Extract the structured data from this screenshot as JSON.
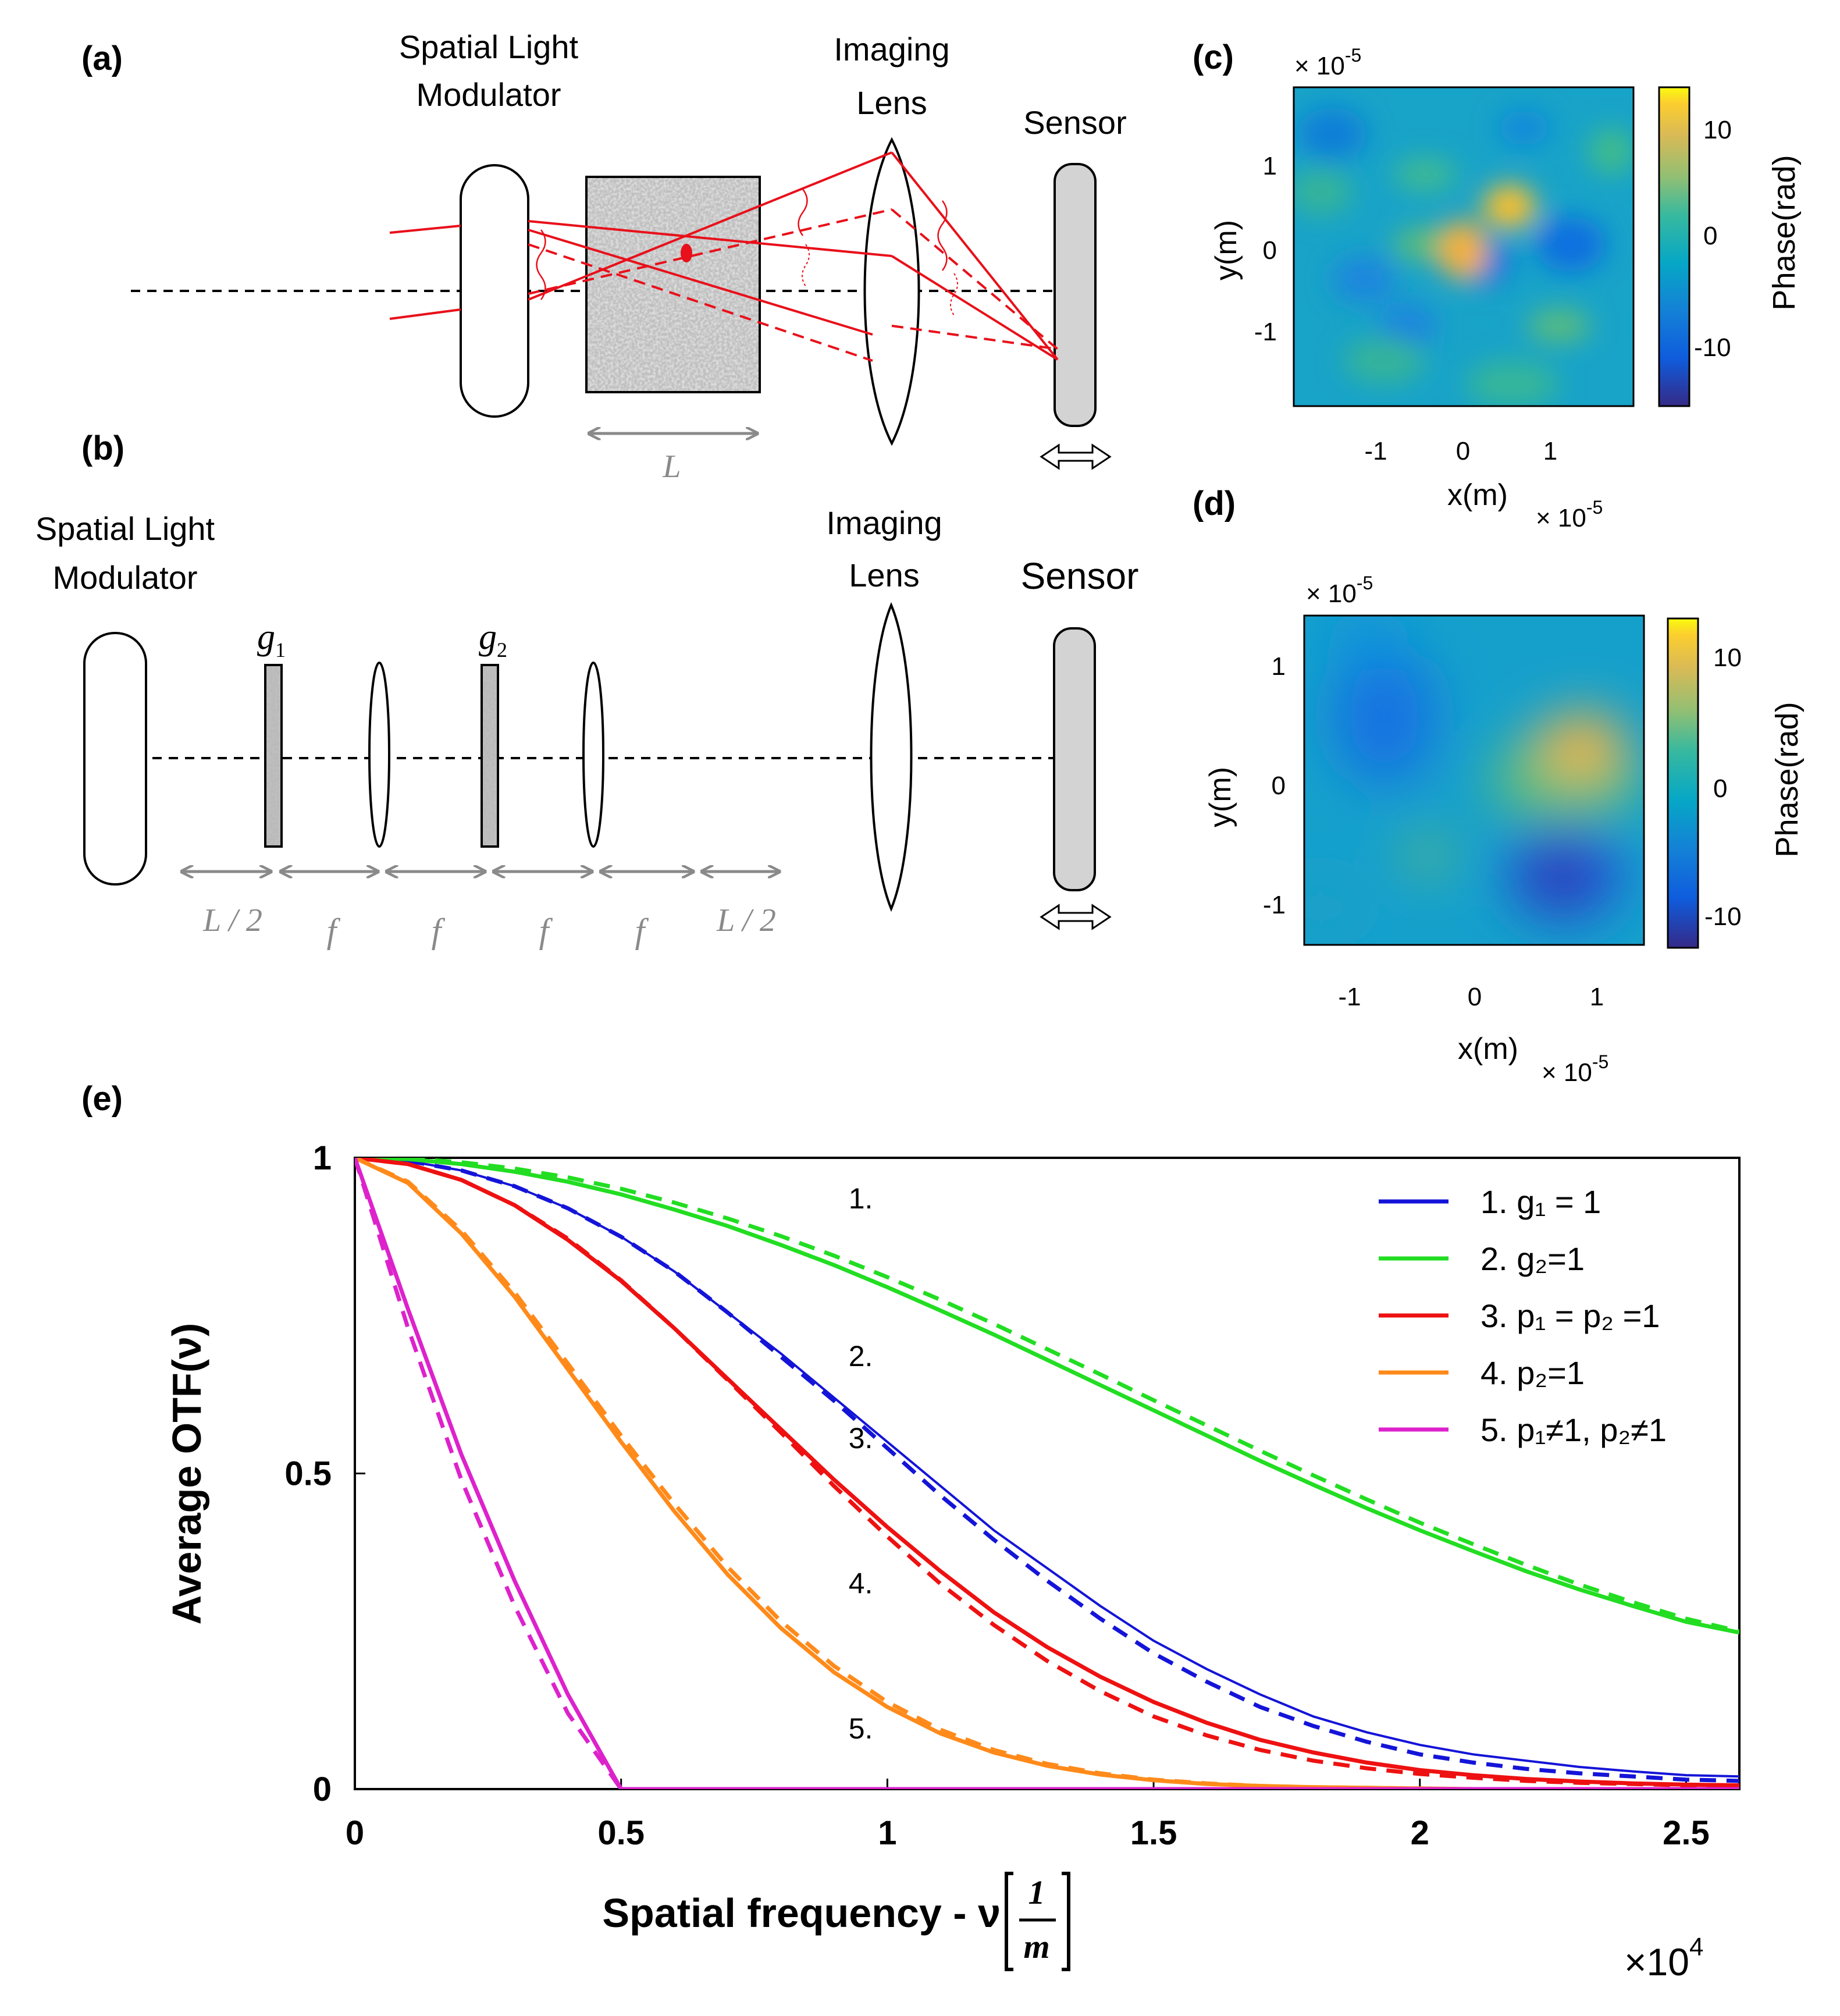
{
  "panels": {
    "a": {
      "tag": "(a)",
      "slm_label_1": "Spatial Light",
      "slm_label_2": "Modulator",
      "lens_label_1": "Imaging",
      "lens_label_2": "Lens",
      "sensor_label": "Sensor",
      "medium_length": "L"
    },
    "b": {
      "tag": "(b)",
      "slm_label_1": "Spatial Light",
      "slm_label_2": "Modulator",
      "lens_label_1": "Imaging",
      "lens_label_2": "Lens",
      "sensor_label": "Sensor",
      "g1_sym": "g",
      "g1_sub": "1",
      "g2_sym": "g",
      "g2_sub": "2",
      "distances": [
        "L / 2",
        "f",
        "f",
        "f",
        "f",
        "L / 2"
      ]
    },
    "c": {
      "tag": "(c)",
      "xlabel": "x(m)",
      "ylabel": "y(m)",
      "x_ticks": [
        "-1",
        "0",
        "1"
      ],
      "y_ticks": [
        "1",
        "0",
        "-1"
      ],
      "x_exp_base": "× 10",
      "x_exp_pow": "-5",
      "y_exp_base": "× 10",
      "y_exp_pow": "-5",
      "cbar_label": "Phase(rad)",
      "cbar_ticks": [
        "10",
        "0",
        "-10"
      ]
    },
    "d": {
      "tag": "(d)",
      "xlabel": "x(m)",
      "ylabel": "y(m)",
      "x_ticks": [
        "-1",
        "0",
        "1"
      ],
      "y_ticks": [
        "1",
        "0",
        "-1"
      ],
      "x_exp_base": "× 10",
      "x_exp_pow": "-5",
      "y_exp_base": "× 10",
      "y_exp_pow": "-5",
      "cbar_label": "Phase(rad)",
      "cbar_ticks": [
        "10",
        "0",
        "-10"
      ]
    },
    "e": {
      "tag": "(e)"
    }
  },
  "colors": {
    "blue": "#1414d8",
    "green": "#22dd22",
    "red": "#ee1111",
    "orange": "#ff8a1a",
    "magenta": "#dd22cc",
    "ray_red": "#e8101a",
    "grey_arrow": "#8a8a8a",
    "sensor_fill": "#d3d3d3"
  },
  "chart_data": {
    "type": "line",
    "title": "",
    "xlabel": "Spatial frequency - ν",
    "xlabel_unit_num": "1",
    "xlabel_unit_den": "m",
    "ylabel": "Average OTF(ν)",
    "x_multiplier_base": "×10",
    "x_multiplier_pow": "4",
    "xlim": [
      0,
      26000
    ],
    "ylim": [
      0,
      1
    ],
    "x_ticks": [
      {
        "v": 0,
        "label": "0"
      },
      {
        "v": 5000,
        "label": "0.5"
      },
      {
        "v": 10000,
        "label": "1"
      },
      {
        "v": 15000,
        "label": "1.5"
      },
      {
        "v": 20000,
        "label": "2"
      },
      {
        "v": 25000,
        "label": "2.5"
      }
    ],
    "y_ticks": [
      {
        "v": 0,
        "label": "0"
      },
      {
        "v": 0.5,
        "label": "0.5"
      },
      {
        "v": 1,
        "label": "1"
      }
    ],
    "legend_position": "top-right",
    "x": [
      0,
      1000,
      2000,
      3000,
      4000,
      5000,
      6000,
      7000,
      8000,
      9000,
      10000,
      11000,
      12000,
      13000,
      14000,
      15000,
      16000,
      17000,
      18000,
      19000,
      20000,
      21000,
      22000,
      23000,
      24000,
      25000,
      26000
    ],
    "series": [
      {
        "name": "1. g₁ = 1",
        "color_key": "blue",
        "solid": [
          1,
          0.995,
          0.98,
          0.955,
          0.92,
          0.875,
          0.82,
          0.755,
          0.69,
          0.62,
          0.55,
          0.48,
          0.41,
          0.35,
          0.29,
          0.235,
          0.19,
          0.15,
          0.115,
          0.09,
          0.07,
          0.055,
          0.045,
          0.035,
          0.028,
          0.022,
          0.02
        ],
        "dashed": [
          1,
          0.995,
          0.98,
          0.955,
          0.92,
          0.875,
          0.82,
          0.755,
          0.685,
          0.615,
          0.54,
          0.465,
          0.395,
          0.33,
          0.27,
          0.215,
          0.17,
          0.13,
          0.1,
          0.075,
          0.055,
          0.042,
          0.032,
          0.025,
          0.02,
          0.015,
          0.013
        ]
      },
      {
        "name": "2. g₂=1",
        "color_key": "green",
        "solid": [
          1,
          0.998,
          0.99,
          0.978,
          0.962,
          0.942,
          0.918,
          0.892,
          0.862,
          0.83,
          0.795,
          0.758,
          0.72,
          0.68,
          0.64,
          0.6,
          0.56,
          0.52,
          0.482,
          0.445,
          0.41,
          0.377,
          0.345,
          0.316,
          0.29,
          0.265,
          0.248
        ],
        "dashed": [
          1,
          0.999,
          0.993,
          0.983,
          0.969,
          0.951,
          0.929,
          0.904,
          0.876,
          0.845,
          0.811,
          0.775,
          0.737,
          0.697,
          0.657,
          0.616,
          0.576,
          0.536,
          0.497,
          0.459,
          0.422,
          0.388,
          0.355,
          0.324,
          0.296,
          0.27,
          0.25
        ]
      },
      {
        "name": "3. p₁ = p₂ =1",
        "color_key": "red",
        "solid": [
          1,
          0.99,
          0.965,
          0.925,
          0.87,
          0.805,
          0.73,
          0.65,
          0.57,
          0.49,
          0.415,
          0.345,
          0.28,
          0.225,
          0.178,
          0.138,
          0.105,
          0.078,
          0.058,
          0.042,
          0.03,
          0.022,
          0.016,
          0.012,
          0.009,
          0.007,
          0.006
        ],
        "dashed": [
          1,
          0.99,
          0.965,
          0.925,
          0.872,
          0.806,
          0.73,
          0.648,
          0.565,
          0.48,
          0.4,
          0.325,
          0.26,
          0.203,
          0.155,
          0.115,
          0.085,
          0.062,
          0.045,
          0.033,
          0.024,
          0.018,
          0.013,
          0.01,
          0.008,
          0.006,
          0.005
        ]
      },
      {
        "name": "4. p₂=1",
        "color_key": "orange",
        "solid": [
          1,
          0.96,
          0.88,
          0.78,
          0.665,
          0.55,
          0.44,
          0.34,
          0.255,
          0.185,
          0.13,
          0.088,
          0.058,
          0.037,
          0.023,
          0.014,
          0.008,
          0.005,
          0.003,
          0.002,
          0.001,
          0,
          0,
          0,
          0,
          0,
          0
        ],
        "dashed": [
          1,
          0.962,
          0.885,
          0.787,
          0.674,
          0.56,
          0.452,
          0.352,
          0.266,
          0.195,
          0.138,
          0.094,
          0.062,
          0.04,
          0.025,
          0.015,
          0.009,
          0.005,
          0.003,
          0.002,
          0.001,
          0,
          0,
          0,
          0,
          0,
          0
        ]
      },
      {
        "name": "5. p₁≠1, p₂≠1",
        "color_key": "magenta",
        "solid": [
          1,
          0.76,
          0.53,
          0.33,
          0.15,
          0,
          0,
          0,
          0,
          0,
          0,
          0,
          0,
          0,
          0,
          0,
          0,
          0,
          0,
          0,
          0,
          0,
          0,
          0,
          0,
          0,
          0
        ],
        "dashed": [
          1,
          0.73,
          0.49,
          0.29,
          0.12,
          0,
          0,
          0,
          0,
          0,
          0,
          0,
          0,
          0,
          0,
          0,
          0,
          0,
          0,
          0,
          0,
          0,
          0,
          0,
          0,
          0,
          0
        ]
      }
    ],
    "annotations": [
      "1.",
      "2.",
      "3.",
      "4.",
      "5."
    ]
  }
}
